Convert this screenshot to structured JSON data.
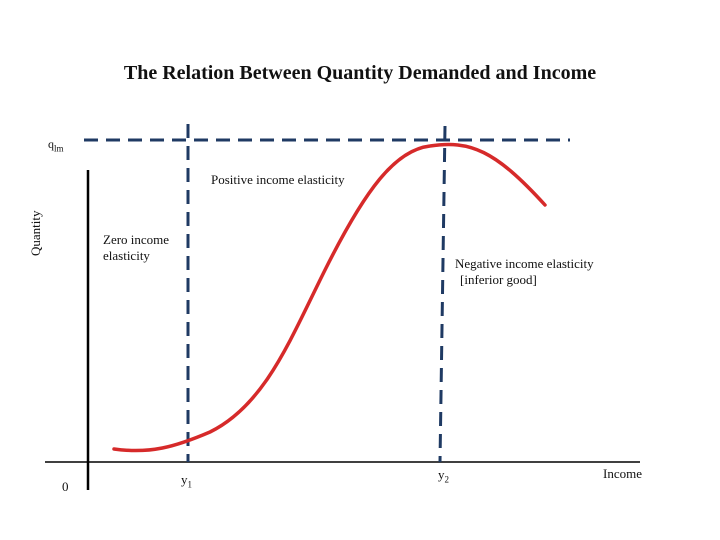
{
  "title": "The Relation Between Quantity Demanded and Income",
  "chart_data": {
    "type": "line",
    "title": "The Relation Between Quantity Demanded and Income",
    "xlabel": "Income",
    "ylabel": "Quantity",
    "origin_label": "0",
    "y_marker": {
      "base": "q",
      "sub": "lm"
    },
    "x_markers": [
      {
        "base": "y",
        "sub": "1"
      },
      {
        "base": "y",
        "sub": "2"
      }
    ],
    "annotations": [
      "Positive income elasticity",
      "Zero income elasticity",
      "Negative income elasticity [inferior good]"
    ],
    "curve_color": "#d62a2a",
    "guide_color": "#1f3a63"
  },
  "labels": {
    "positive": "Positive income elasticity",
    "zero_line1": "Zero income",
    "zero_line2": "elasticity",
    "negative_line1": "Negative income elasticity",
    "negative_line2": "[inferior good]"
  }
}
